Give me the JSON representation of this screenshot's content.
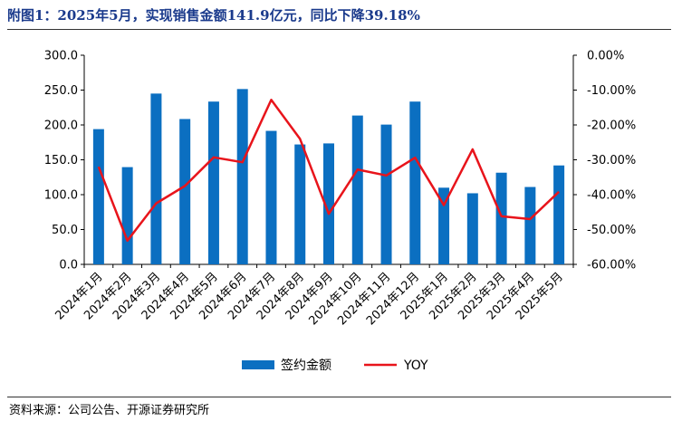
{
  "title": "附图1：2025年5月，实现销售金额141.9亿元，同比下降39.18%",
  "source": "资料来源：公司公告、开源证券研究所",
  "colors": {
    "bar": "#0b6fc1",
    "line": "#e8141b",
    "title": "#1a3a8c"
  },
  "chart_data": {
    "type": "bar",
    "categories": [
      "2024年1月",
      "2024年2月",
      "2024年3月",
      "2024年4月",
      "2024年5月",
      "2024年6月",
      "2024年7月",
      "2024年8月",
      "2024年9月",
      "2024年10月",
      "2024年11月",
      "2024年12月",
      "2025年1月",
      "2025年2月",
      "2025年3月",
      "2025年4月",
      "2025年5月"
    ],
    "series": [
      {
        "name": "签约金额",
        "type": "bar",
        "axis": "left",
        "values": [
          194.0,
          139.5,
          245.0,
          208.5,
          233.5,
          251.5,
          191.5,
          172.0,
          173.5,
          213.5,
          200.5,
          233.5,
          110.0,
          102.0,
          131.5,
          111.0,
          141.9
        ]
      },
      {
        "name": "YOY",
        "type": "line",
        "axis": "right",
        "values": [
          -32.0,
          -53.2,
          -42.5,
          -37.5,
          -29.3,
          -30.7,
          -12.8,
          -24.0,
          -45.5,
          -32.8,
          -34.5,
          -29.4,
          -43.0,
          -27.0,
          -46.2,
          -47.0,
          -39.18
        ]
      }
    ],
    "yleft": {
      "ylim": [
        0,
        300
      ],
      "ticks": [
        "0.0",
        "50.0",
        "100.0",
        "150.0",
        "200.0",
        "250.0",
        "300.0"
      ]
    },
    "yright": {
      "ylim": [
        -60,
        0
      ],
      "ticks": [
        "-60.00%",
        "-50.00%",
        "-40.00%",
        "-30.00%",
        "-20.00%",
        "-10.00%",
        "0.00%"
      ]
    },
    "legend_position": "bottom"
  }
}
